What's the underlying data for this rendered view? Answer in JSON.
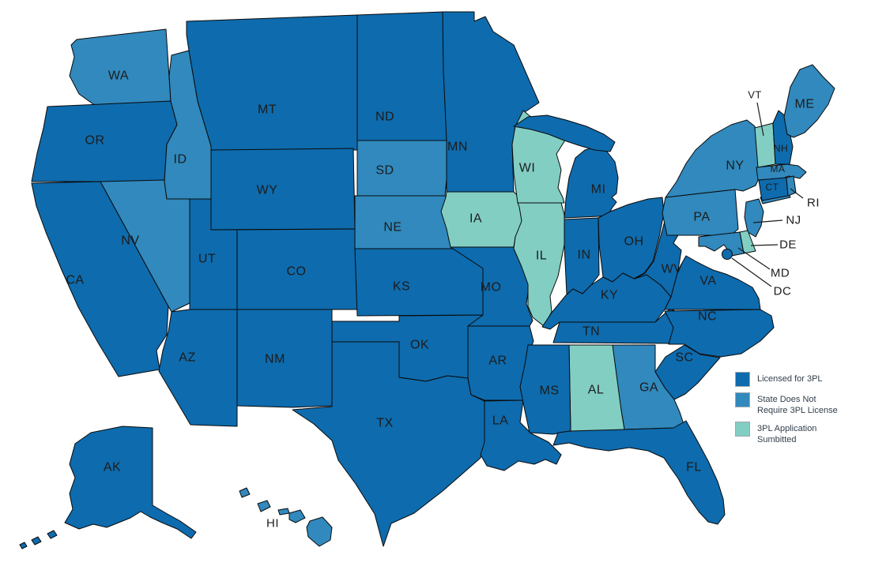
{
  "map_data": {
    "type": "choropleth",
    "region": "United States",
    "status_colors": {
      "licensed": "#0E6BAD",
      "not_required": "#3189BD",
      "application": "#82CEC3"
    },
    "status_labels": {
      "licensed": "Licensed for 3PL",
      "not_required": "State Does Not Require 3PL License",
      "application": "3PL Application Sumbitted"
    },
    "states": [
      {
        "abbr": "WA",
        "status": "not_required"
      },
      {
        "abbr": "OR",
        "status": "licensed"
      },
      {
        "abbr": "CA",
        "status": "licensed"
      },
      {
        "abbr": "NV",
        "status": "not_required"
      },
      {
        "abbr": "ID",
        "status": "not_required"
      },
      {
        "abbr": "MT",
        "status": "licensed"
      },
      {
        "abbr": "WY",
        "status": "licensed"
      },
      {
        "abbr": "UT",
        "status": "licensed"
      },
      {
        "abbr": "CO",
        "status": "licensed"
      },
      {
        "abbr": "AZ",
        "status": "licensed"
      },
      {
        "abbr": "NM",
        "status": "licensed"
      },
      {
        "abbr": "ND",
        "status": "licensed"
      },
      {
        "abbr": "SD",
        "status": "not_required"
      },
      {
        "abbr": "NE",
        "status": "not_required"
      },
      {
        "abbr": "KS",
        "status": "licensed"
      },
      {
        "abbr": "OK",
        "status": "licensed"
      },
      {
        "abbr": "TX",
        "status": "licensed"
      },
      {
        "abbr": "MN",
        "status": "licensed"
      },
      {
        "abbr": "IA",
        "status": "application"
      },
      {
        "abbr": "MO",
        "status": "licensed"
      },
      {
        "abbr": "AR",
        "status": "licensed"
      },
      {
        "abbr": "LA",
        "status": "licensed"
      },
      {
        "abbr": "WI",
        "status": "application"
      },
      {
        "abbr": "IL",
        "status": "application"
      },
      {
        "abbr": "IN",
        "status": "licensed"
      },
      {
        "abbr": "MI",
        "status": "licensed"
      },
      {
        "abbr": "OH",
        "status": "licensed"
      },
      {
        "abbr": "KY",
        "status": "licensed"
      },
      {
        "abbr": "TN",
        "status": "licensed"
      },
      {
        "abbr": "WV",
        "status": "licensed"
      },
      {
        "abbr": "VA",
        "status": "licensed"
      },
      {
        "abbr": "NC",
        "status": "licensed"
      },
      {
        "abbr": "SC",
        "status": "licensed"
      },
      {
        "abbr": "GA",
        "status": "not_required"
      },
      {
        "abbr": "AL",
        "status": "application"
      },
      {
        "abbr": "MS",
        "status": "licensed"
      },
      {
        "abbr": "FL",
        "status": "licensed"
      },
      {
        "abbr": "PA",
        "status": "not_required"
      },
      {
        "abbr": "NY",
        "status": "not_required"
      },
      {
        "abbr": "NJ",
        "status": "not_required"
      },
      {
        "abbr": "VT",
        "status": "application"
      },
      {
        "abbr": "NH",
        "status": "licensed"
      },
      {
        "abbr": "ME",
        "status": "not_required"
      },
      {
        "abbr": "MA",
        "status": "not_required"
      },
      {
        "abbr": "CT",
        "status": "licensed"
      },
      {
        "abbr": "RI",
        "status": "not_required"
      },
      {
        "abbr": "DE",
        "status": "application"
      },
      {
        "abbr": "MD",
        "status": "not_required"
      },
      {
        "abbr": "DC",
        "status": "licensed"
      },
      {
        "abbr": "AK",
        "status": "licensed"
      },
      {
        "abbr": "HI",
        "status": "not_required"
      }
    ]
  },
  "legend": {
    "items": [
      {
        "status": "licensed",
        "color": "#0E6BAD",
        "lines": [
          "Licensed for 3PL"
        ]
      },
      {
        "status": "not_required",
        "color": "#3189BD",
        "lines": [
          "State Does Not",
          "Require 3PL License"
        ]
      },
      {
        "status": "application",
        "color": "#82CEC3",
        "lines": [
          "3PL Application",
          "Sumbitted"
        ]
      }
    ]
  },
  "colors": {
    "background": "#FFFFFF",
    "border": "#0A0A0A",
    "label_text": "#1C1C1C",
    "legend_text": "#33404C"
  }
}
